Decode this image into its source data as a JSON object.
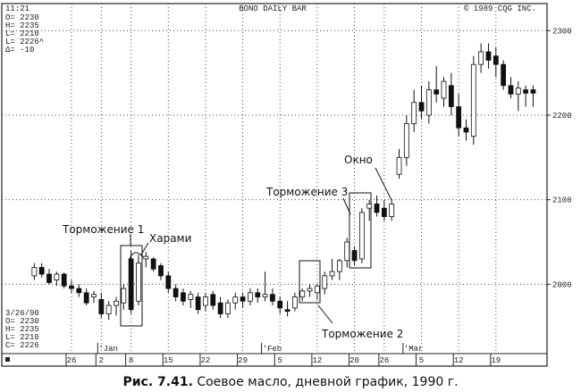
{
  "header": {
    "time": "11:21",
    "title": "BONO DAILY BAR",
    "copyright": "© 1989 CQG INC."
  },
  "readout_top": [
    "O= 2230",
    "H= 2235",
    "L= 2210",
    "L= 2226^",
    "Δ= -10"
  ],
  "readout_bottom": [
    "3/26/90",
    "O= 2230",
    "H= 2235",
    "L= 2210",
    "C= 2226"
  ],
  "chart_data": {
    "type": "candlestick",
    "categories": [
      null,
      null,
      null,
      null,
      null,
      "26",
      null,
      null,
      null,
      "2",
      null,
      null,
      null,
      "8",
      null,
      null,
      null,
      null,
      "15",
      null,
      null,
      null,
      null,
      "22",
      null,
      null,
      null,
      null,
      "29",
      null,
      null,
      null,
      null,
      "5",
      null,
      null,
      null,
      null,
      "12",
      null,
      null,
      null,
      null,
      "20",
      null,
      null,
      null,
      "26",
      null,
      null,
      null,
      null,
      "5",
      null,
      null,
      null,
      null,
      "12",
      null,
      null,
      null,
      null,
      "19",
      null,
      null,
      null,
      null,
      null
    ],
    "months": [
      null,
      null,
      null,
      null,
      null,
      null,
      null,
      null,
      null,
      "'Jan",
      null,
      null,
      null,
      null,
      null,
      null,
      null,
      null,
      null,
      null,
      null,
      null,
      null,
      null,
      null,
      null,
      null,
      null,
      null,
      null,
      null,
      "'Feb",
      null,
      null,
      null,
      null,
      null,
      null,
      null,
      null,
      null,
      null,
      null,
      null,
      null,
      null,
      null,
      null,
      null,
      null,
      "'Mar",
      null,
      null,
      null,
      null,
      null,
      null,
      null,
      null,
      null,
      null,
      null,
      null,
      null,
      null,
      null,
      null,
      null
    ],
    "open": [
      2010,
      2020,
      2012,
      2005,
      2012,
      1998,
      1995,
      1990,
      1985,
      1982,
      1965,
      1975,
      1978,
      2030,
      1980,
      2030,
      2030,
      2022,
      2010,
      1995,
      1990,
      1982,
      1985,
      1975,
      1988,
      1978,
      1965,
      1978,
      1985,
      1980,
      1990,
      1985,
      1988,
      1980,
      1970,
      1972,
      1985,
      1992,
      1990,
      1995,
      2010,
      2015,
      2028,
      2040,
      2030,
      2090,
      2095,
      2090,
      2080,
      2130,
      2150,
      2190,
      2215,
      2200,
      2230,
      2220,
      2235,
      2210,
      2185,
      2175,
      2260,
      2275,
      2270,
      2260,
      2235,
      2225,
      2230,
      2230
    ],
    "high": [
      2025,
      2025,
      2018,
      2015,
      2014,
      2005,
      2000,
      1995,
      1992,
      1990,
      1980,
      1985,
      2000,
      2040,
      2035,
      2038,
      2032,
      2025,
      2015,
      2000,
      1995,
      1992,
      1990,
      1990,
      1992,
      1985,
      1982,
      1990,
      1990,
      1995,
      1995,
      2015,
      1995,
      1985,
      1980,
      1990,
      1995,
      2000,
      2000,
      2015,
      2030,
      2030,
      2055,
      2045,
      2090,
      2100,
      2105,
      2100,
      2100,
      2160,
      2200,
      2230,
      2235,
      2240,
      2258,
      2245,
      2250,
      2225,
      2195,
      2270,
      2285,
      2285,
      2280,
      2265,
      2245,
      2240,
      2235,
      2235
    ],
    "low": [
      2005,
      2008,
      2000,
      1998,
      1995,
      1990,
      1985,
      1975,
      1978,
      1960,
      1958,
      1963,
      1970,
      1965,
      1975,
      2020,
      2015,
      2005,
      1990,
      1980,
      1975,
      1972,
      1965,
      1968,
      1970,
      1960,
      1960,
      1970,
      1972,
      1975,
      1978,
      1980,
      1975,
      1965,
      1962,
      1968,
      1980,
      1985,
      1982,
      1988,
      2005,
      2005,
      2020,
      2022,
      2025,
      2075,
      2080,
      2075,
      2075,
      2125,
      2140,
      2180,
      2195,
      2190,
      2215,
      2210,
      2200,
      2175,
      2170,
      2165,
      2250,
      2255,
      2245,
      2230,
      2220,
      2205,
      2210,
      2210
    ],
    "close": [
      2020,
      2012,
      2002,
      2012,
      1998,
      1995,
      1990,
      1978,
      1988,
      1965,
      1975,
      1980,
      1995,
      1970,
      2025,
      2033,
      2018,
      2010,
      1995,
      1985,
      1980,
      1988,
      1970,
      1985,
      1975,
      1965,
      1978,
      1985,
      1980,
      1990,
      1985,
      1988,
      1980,
      1972,
      1968,
      1985,
      1992,
      1995,
      1998,
      2010,
      2015,
      2028,
      2050,
      2028,
      2085,
      2095,
      2085,
      2080,
      2095,
      2150,
      2190,
      2215,
      2205,
      2230,
      2225,
      2240,
      2210,
      2185,
      2180,
      2260,
      2275,
      2265,
      2260,
      2235,
      2225,
      2232,
      2226,
      2226
    ],
    "ylim": [
      1918,
      2332
    ],
    "yticks": [
      2000,
      2100,
      2200,
      2300
    ],
    "grid": true,
    "annotations": [
      "Торможение 1",
      "Харами",
      "Торможение 3",
      "Окно",
      "Торможение 2"
    ]
  },
  "caption": {
    "label": "Рис. 7.41.",
    "text": "Соевое масло, дневной график, 1990 г."
  }
}
